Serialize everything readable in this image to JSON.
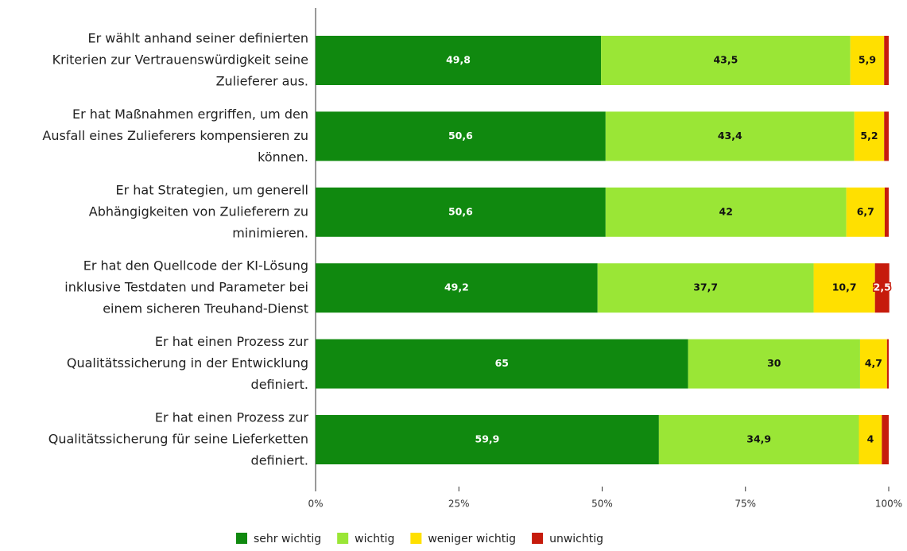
{
  "chart_data": {
    "type": "stacked_bar_horizontal",
    "categories": [
      [
        "Er wählt anhand seiner definierten",
        "Kriterien zur Vertrauenswürdigkeit seine",
        "Zulieferer aus."
      ],
      [
        "Er hat Maßnahmen ergriffen, um den",
        "Ausfall eines Zulieferers kompensieren zu",
        "können."
      ],
      [
        "Er hat Strategien, um generell",
        "Abhängigkeiten von Zulieferern zu",
        "minimieren."
      ],
      [
        "Er hat den Quellcode der KI-Lösung",
        "inklusive Testdaten und Parameter bei",
        "einem sicheren Treuhand-Dienst"
      ],
      [
        "Er hat einen Prozess zur",
        "Qualitätssicherung in der Entwicklung",
        "definiert."
      ],
      [
        "Er hat einen Prozess zur",
        "Qualitätssicherung für seine Lieferketten",
        "definiert."
      ]
    ],
    "series": [
      {
        "name": "sehr wichtig",
        "color": "#10890f",
        "values": [
          49.8,
          50.6,
          50.6,
          49.2,
          65,
          59.9
        ],
        "value_labels": [
          "49,8",
          "50,6",
          "50,6",
          "49,2",
          "65",
          "59,9"
        ]
      },
      {
        "name": "wichtig",
        "color": "#9ae636",
        "values": [
          43.5,
          43.4,
          42,
          37.7,
          30,
          34.9
        ],
        "value_labels": [
          "43,5",
          "43,4",
          "42",
          "37,7",
          "30",
          "34,9"
        ]
      },
      {
        "name": "weniger wichtig",
        "color": "#ffe000",
        "values": [
          5.9,
          5.2,
          6.7,
          10.7,
          4.7,
          4
        ],
        "value_labels": [
          "5,9",
          "5,2",
          "6,7",
          "10,7",
          "4,7",
          "4"
        ]
      },
      {
        "name": "unwichtig",
        "color": "#c61b0c",
        "values": [
          0.8,
          0.8,
          0.7,
          2.5,
          0.3,
          1.2
        ],
        "value_labels": [
          null,
          null,
          null,
          "2,5",
          null,
          null
        ]
      }
    ],
    "xlim": [
      0,
      100
    ],
    "xticks": [
      {
        "value": 0,
        "label": "0%"
      },
      {
        "value": 25,
        "label": "25%"
      },
      {
        "value": 50,
        "label": "50%"
      },
      {
        "value": 75,
        "label": "75%"
      },
      {
        "value": 100,
        "label": "100%"
      }
    ],
    "legend": "bottom"
  }
}
